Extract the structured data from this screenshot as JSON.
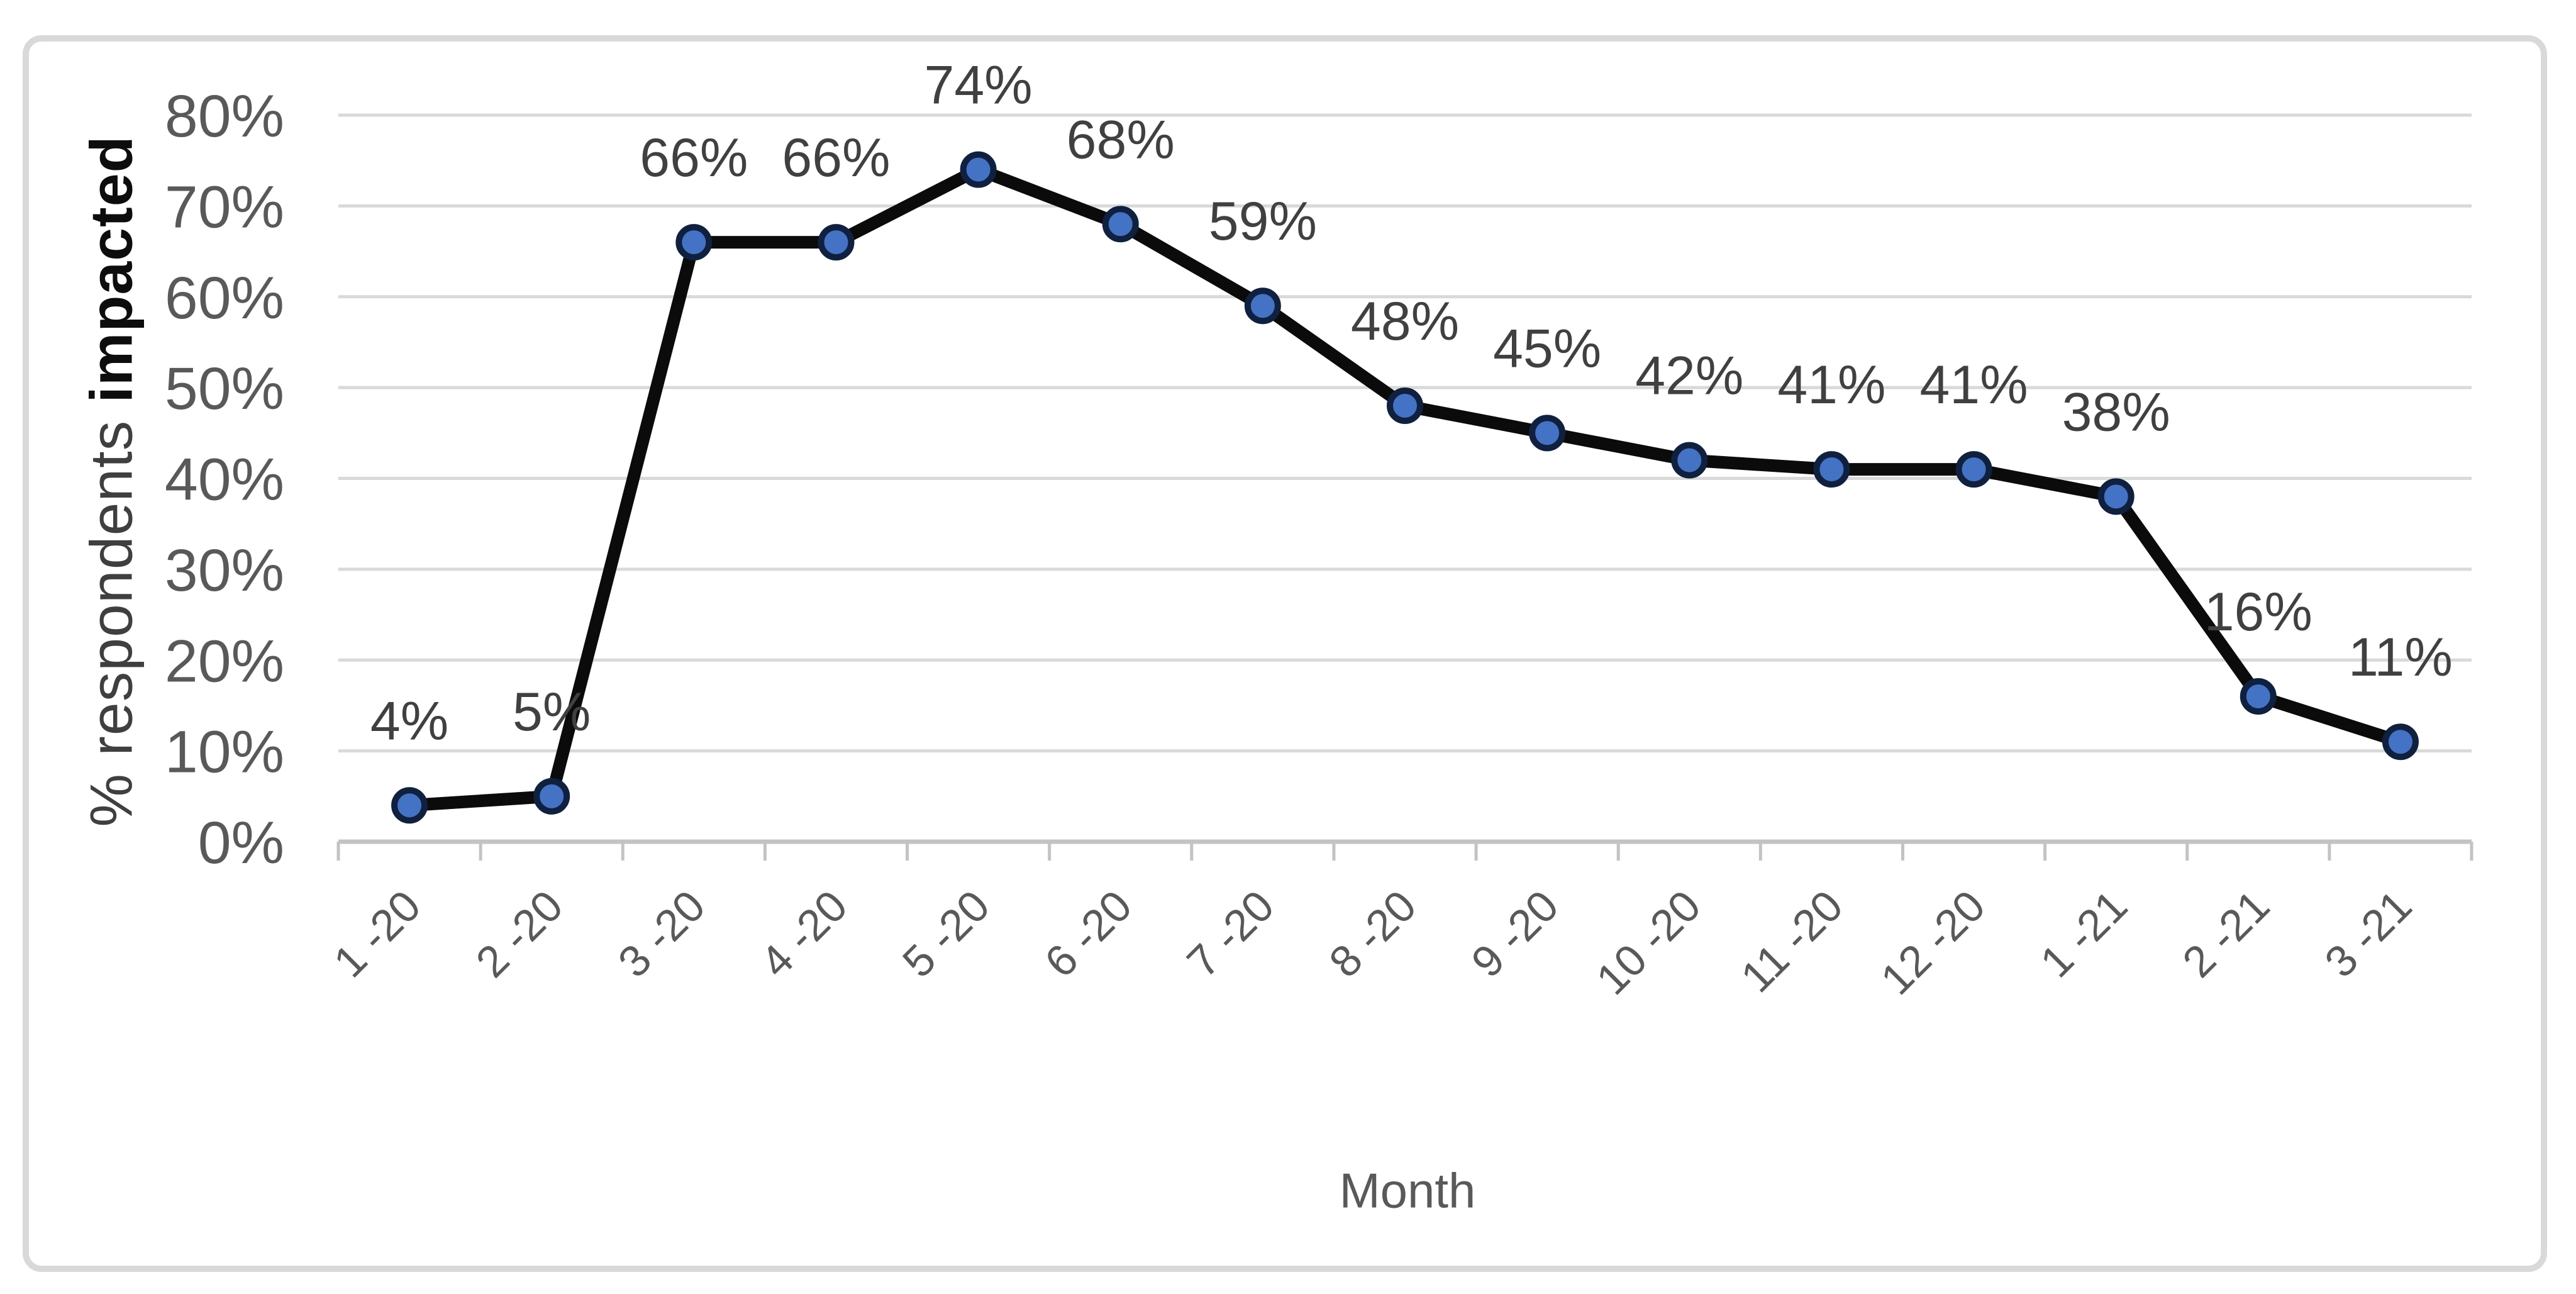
{
  "colors": {
    "line": "#0b0b0b",
    "marker_fill": "#4472c4",
    "marker_border": "#10203f",
    "gridline": "#d9d9d9",
    "axis_line": "#c3c3c3",
    "tick_text": "#595959",
    "data_label_text": "#404040",
    "frame_border": "#d9d9d9",
    "background": "#ffffff"
  },
  "chart_data": {
    "type": "line",
    "title": "",
    "xlabel": "Month",
    "ylabel": "% respondents impacted",
    "ylabel_regular": "% respondents ",
    "ylabel_bold": "impacted",
    "legend": "none",
    "grid": "horizontal",
    "marker": "circle",
    "ylim": [
      0,
      80
    ],
    "y_step": 10,
    "y_tick_labels": [
      "0%",
      "10%",
      "20%",
      "30%",
      "40%",
      "50%",
      "60%",
      "70%",
      "80%"
    ],
    "categories": [
      "1 -20",
      "2 -20",
      "3 -20",
      "4 -20",
      "5 -20",
      "6 -20",
      "7 -20",
      "8 -20",
      "9 -20",
      "10 -20",
      "11 -20",
      "12 -20",
      "1 -21",
      "2 -21",
      "3 -21"
    ],
    "series": [
      {
        "name": "% respondents impacted",
        "values": [
          4,
          5,
          66,
          66,
          74,
          68,
          59,
          48,
          45,
          42,
          41,
          41,
          38,
          16,
          11
        ]
      }
    ],
    "data_labels": [
      "4%",
      "5%",
      "66%",
      "66%",
      "74%",
      "68%",
      "59%",
      "48%",
      "45%",
      "42%",
      "41%",
      "41%",
      "38%",
      "16%",
      "11%"
    ]
  }
}
